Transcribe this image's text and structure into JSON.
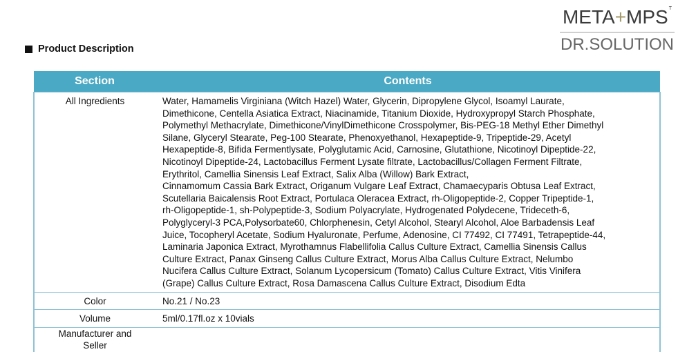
{
  "logo": {
    "top_left": "META",
    "plus": "+",
    "top_right": "MPS",
    "tm": "T",
    "bottom": "DR.SOLUTION"
  },
  "heading": "Product Description",
  "table": {
    "headers": [
      "Section",
      "Contents"
    ],
    "ingredients": {
      "label": "All Ingredients",
      "lines": [
        "Water, Hamamelis Virginiana (Witch Hazel) Water, Glycerin, Dipropylene Glycol, Isoamyl Laurate,",
        "Dimethicone, Centella Asiatica Extract, Niacinamide, Titanium Dioxide, Hydroxypropyl Starch Phosphate,",
        "Polymethyl Methacrylate, Dimethicone/VinylDimethicone Crosspolymer, Bis-PEG-18 Methyl Ether Dimethyl",
        "Silane, Glyceryl Stearate, Peg-100 Stearate, Phenoxyethanol, Hexapeptide-9, Tripeptide-29, Acetyl",
        "Hexapeptide-8, Bifida Fermentlysate, Polyglutamic Acid, Carnosine, Glutathione, Nicotinoyl Dipeptide-22,",
        "Nicotinoyl Dipeptide-24, Lactobacillus Ferment Lysate filtrate, Lactobacillus/Collagen Ferment Filtrate,",
        "Erythritol, Camellia Sinensis Leaf Extract, Salix Alba (Willow) Bark Extract,",
        "Cinnamomum Cassia Bark Extract, Origanum Vulgare Leaf Extract, Chamaecyparis Obtusa Leaf Extract,",
        "Scutellaria Baicalensis Root Extract, Portulaca Oleracea Extract, rh-Oligopeptide-2, Copper Tripeptide-1,",
        "rh-Oligopeptide-1, sh-Polypeptide-3, Sodium Polyacrylate, Hydrogenated Polydecene, Trideceth-6,",
        "Polyglyceryl-3 PCA,Polysorbate60, Chlorphenesin, Cetyl Alcohol, Stearyl Alcohol, Aloe Barbadensis Leaf",
        "Juice, Tocopheryl Acetate, Sodium Hyaluronate, Perfume, Adenosine, CI 77492, CI 77491, Tetrapeptide-44,",
        "Laminaria Japonica Extract, Myrothamnus Flabellifolia Callus Culture Extract, Camellia Sinensis Callus",
        "Culture Extract, Panax Ginseng Callus Culture Extract, Morus Alba Callus Culture Extract, Nelumbo",
        "Nucifera Callus Culture Extract, Solanum Lycopersicum (Tomato) Callus Culture Extract, Vitis Vinifera",
        "(Grape) Callus Culture Extract, Rosa Damascena Callus Culture Extract, Disodium Edta"
      ]
    },
    "color": {
      "label": "Color",
      "value": "No.21 / No.23"
    },
    "volume": {
      "label": "Volume",
      "value": "5ml/0.17fl.oz x 10vials"
    },
    "manufacturer": {
      "label": "Manufacturer and Seller",
      "value": ""
    }
  },
  "colors": {
    "header_bg": "#4aa9c4",
    "border": "#8cc3d6"
  }
}
